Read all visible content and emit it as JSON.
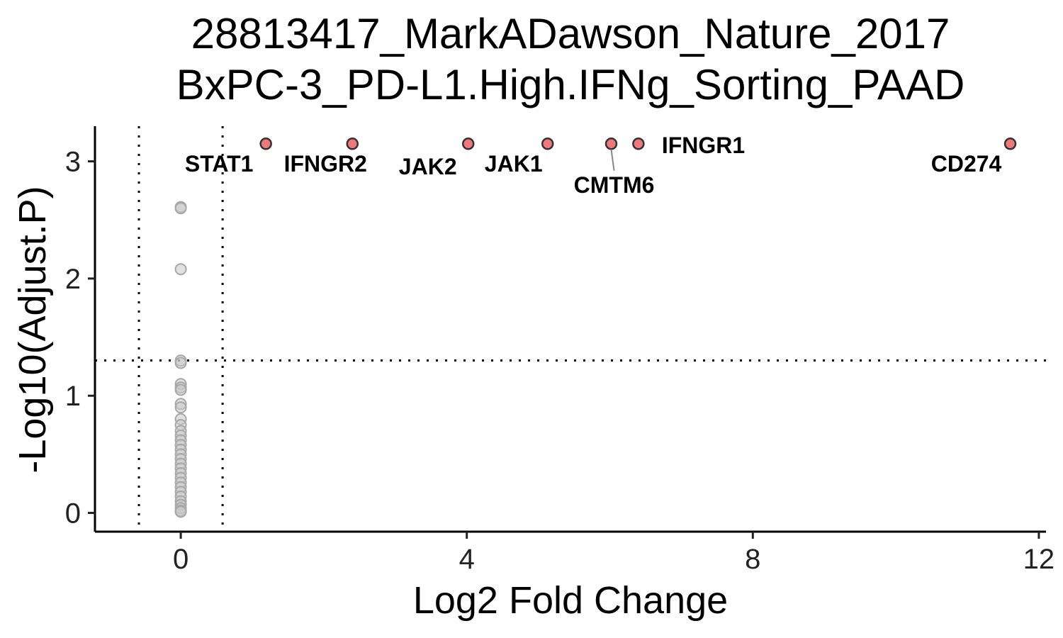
{
  "chart_data": {
    "type": "scatter",
    "title": [
      "28813417_MarkADawson_Nature_2017",
      "BxPC-3_PD-L1.High.IFNg_Sorting_PAAD"
    ],
    "xlabel": "Log2 Fold Change",
    "ylabel": "-Log10(Adjust.P)",
    "xlim": [
      -1.2,
      12.1
    ],
    "ylim": [
      -0.16,
      3.3
    ],
    "xticks": [
      0,
      4,
      8,
      12
    ],
    "yticks": [
      0,
      1,
      2,
      3
    ],
    "x_thresholds": [
      -0.585,
      0.585
    ],
    "y_threshold": 1.301,
    "grid": false,
    "legend": "none",
    "colors": {
      "highlight": "#f0787a",
      "background": "#c8c8c8",
      "outline": "#333333",
      "label_line": "#888888"
    },
    "highlighted": [
      {
        "gene": "STAT1",
        "x": 1.19,
        "y": 3.15
      },
      {
        "gene": "IFNGR2",
        "x": 2.4,
        "y": 3.15
      },
      {
        "gene": "JAK2",
        "x": 4.02,
        "y": 3.15
      },
      {
        "gene": "JAK1",
        "x": 5.13,
        "y": 3.15
      },
      {
        "gene": "CMTM6",
        "x": 6.02,
        "y": 3.15
      },
      {
        "gene": "IFNGR1",
        "x": 6.4,
        "y": 3.15
      },
      {
        "gene": "CD274",
        "x": 11.6,
        "y": 3.15
      }
    ],
    "background_points": {
      "x": 0,
      "y": [
        2.61,
        2.6,
        2.08,
        1.3,
        1.28,
        1.1,
        1.07,
        1.05,
        0.93,
        0.9,
        0.8,
        0.75,
        0.7,
        0.66,
        0.62,
        0.58,
        0.54,
        0.5,
        0.46,
        0.42,
        0.38,
        0.34,
        0.3,
        0.26,
        0.22,
        0.18,
        0.14,
        0.1,
        0.07,
        0.04,
        0.02,
        0.01
      ]
    }
  }
}
